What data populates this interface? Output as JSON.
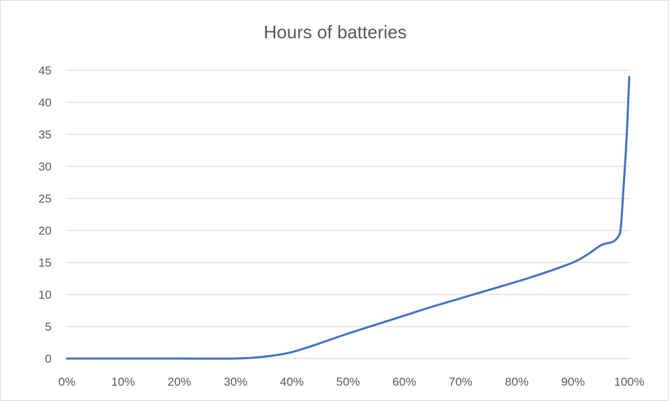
{
  "chart_data": {
    "type": "line",
    "title": "Hours of batteries",
    "xlabel": "",
    "ylabel": "",
    "x_tick_labels": [
      "0%",
      "10%",
      "20%",
      "30%",
      "40%",
      "50%",
      "60%",
      "70%",
      "80%",
      "90%",
      "100%"
    ],
    "y_tick_labels": [
      "0",
      "5",
      "10",
      "15",
      "20",
      "25",
      "30",
      "35",
      "40",
      "45"
    ],
    "xlim": [
      0,
      1
    ],
    "ylim": [
      0,
      45
    ],
    "grid": true,
    "legend": "none",
    "colors": {
      "series": "#4472c4",
      "grid": "#d9d9d9",
      "text": "#595959"
    },
    "series": [
      {
        "x": [
          0,
          0.1,
          0.2,
          0.3,
          0.34,
          0.37,
          0.4,
          0.43,
          0.46,
          0.5,
          0.55,
          0.6,
          0.65,
          0.7,
          0.75,
          0.8,
          0.85,
          0.9,
          0.925,
          0.95,
          0.97,
          0.98,
          0.985,
          0.99,
          0.995,
          1.0
        ],
        "y": [
          0,
          0,
          0,
          0,
          0.2,
          0.5,
          1.0,
          1.8,
          2.7,
          3.9,
          5.3,
          6.7,
          8.1,
          9.4,
          10.7,
          12.0,
          13.4,
          15.0,
          16.2,
          17.7,
          18.2,
          19.0,
          20.5,
          27.0,
          34.0,
          44.0
        ]
      }
    ]
  }
}
